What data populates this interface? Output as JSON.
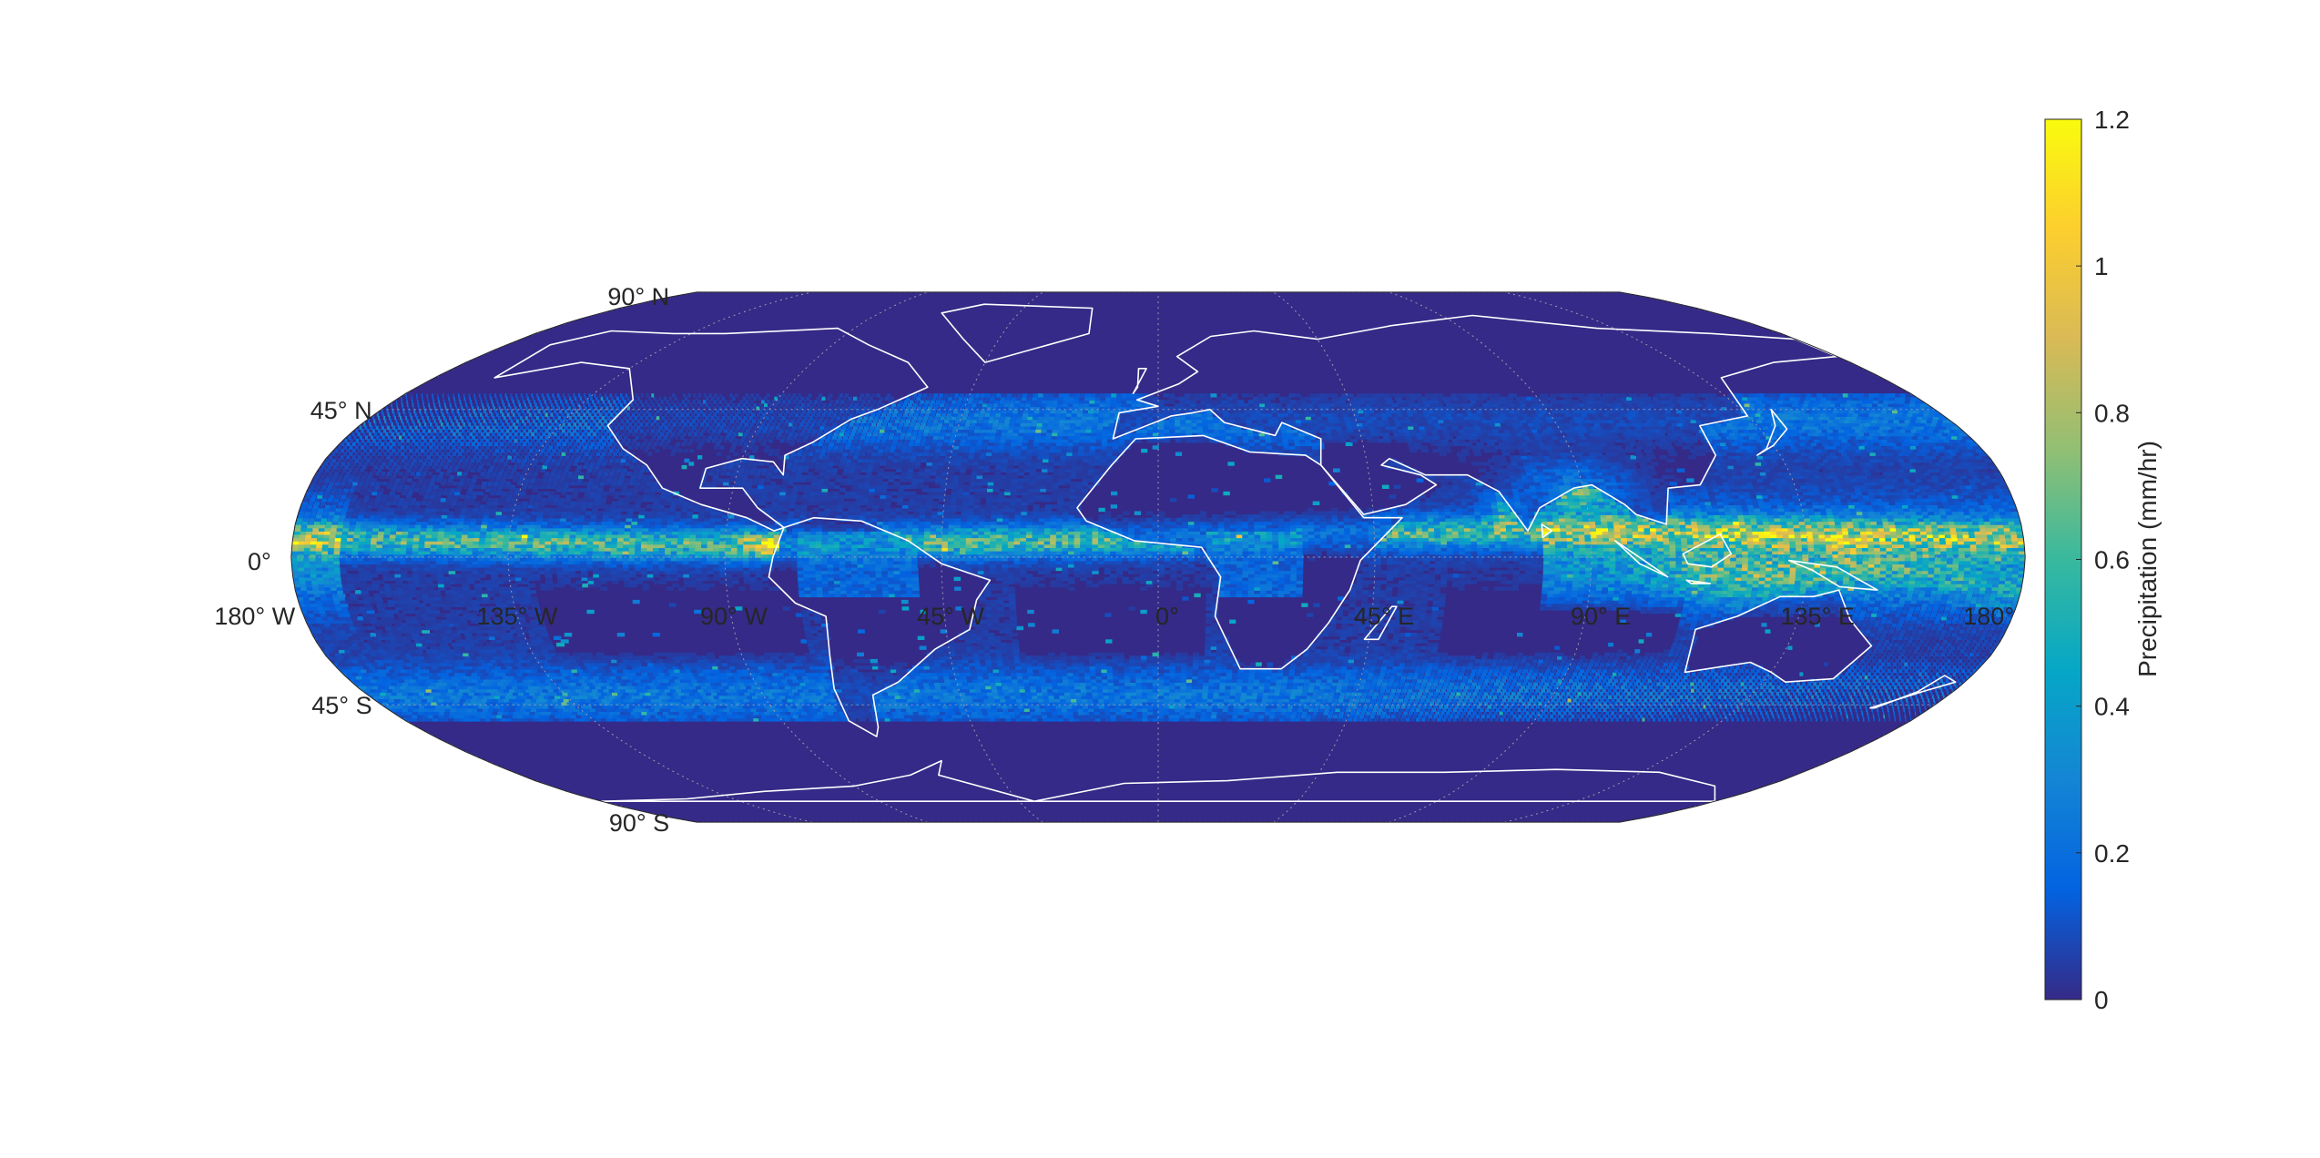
{
  "map": {
    "projection": "robinson",
    "colormap": "parula",
    "data_band_latitude": [
      -50,
      50
    ],
    "ocean_base_color": "#352a87",
    "coastline_color": "#ffffff",
    "graticule_color": "#9a9ab0"
  },
  "lat_labels": [
    {
      "lat": 90,
      "text": "90° N"
    },
    {
      "lat": 45,
      "text": "45° N"
    },
    {
      "lat": 0,
      "text": "0°"
    },
    {
      "lat": -45,
      "text": "45° S"
    },
    {
      "lat": -90,
      "text": "90° S"
    }
  ],
  "lon_labels": [
    {
      "lon": -180,
      "text": "180° W"
    },
    {
      "lon": -135,
      "text": "135° W"
    },
    {
      "lon": -90,
      "text": "90° W"
    },
    {
      "lon": -45,
      "text": "45° W"
    },
    {
      "lon": 0,
      "text": "0°"
    },
    {
      "lon": 45,
      "text": "45° E"
    },
    {
      "lon": 90,
      "text": "90° E"
    },
    {
      "lon": 135,
      "text": "135° E"
    },
    {
      "lon": 180,
      "text": "180°"
    }
  ],
  "colorbar": {
    "label": "Precipitation (mm/hr)",
    "min": 0,
    "max": 1.2,
    "ticks": [
      "0",
      "0.2",
      "0.4",
      "0.6",
      "0.8",
      "1",
      "1.2"
    ],
    "tick_values": [
      0,
      0.2,
      0.4,
      0.6,
      0.8,
      1.0,
      1.2
    ]
  }
}
